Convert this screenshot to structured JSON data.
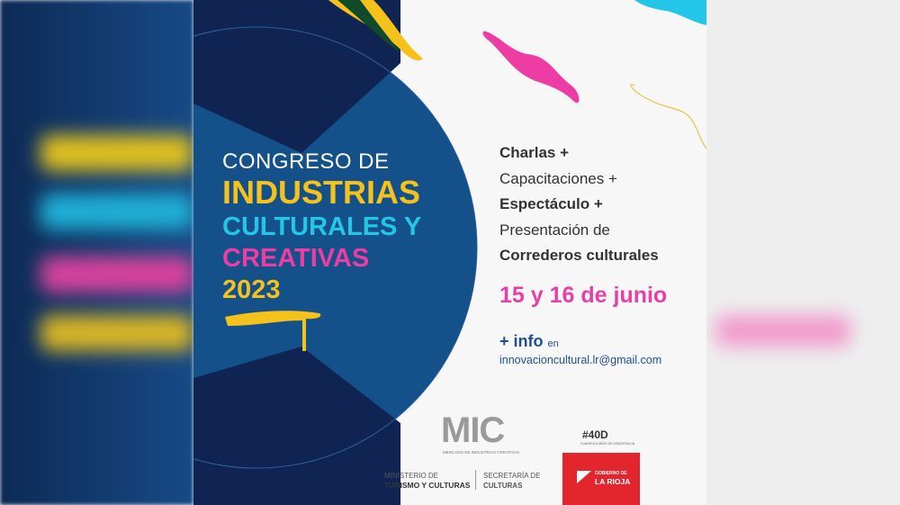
{
  "title": {
    "line1": "CONGRESO DE",
    "line2": "INDUSTRIAS",
    "line3": "CULTURALES Y",
    "line4": "CREATIVAS",
    "line5": "2023"
  },
  "activities": [
    {
      "text": "Charlas +",
      "bold": true
    },
    {
      "text": "Capacitaciones +",
      "bold": false
    },
    {
      "text": "Espectáculo +",
      "bold": true
    },
    {
      "text": "Presentación de",
      "bold": false
    },
    {
      "text": "Correderos culturales",
      "bold": true
    }
  ],
  "date": "15 y 16 de junio",
  "more_info": {
    "label": "+ info",
    "suffix": "en",
    "email": "innovacioncultural.lr@gmail.com"
  },
  "logos": {
    "mic": "MIC",
    "mic_sub": "MERCADO DE INDUSTRIAS CREATIVAS",
    "ministry_line1": "MINISTERIO DE",
    "ministry_line2": "TURISMO Y CULTURAS",
    "secretary_line1": "SECRETARÍA DE",
    "secretary_line2": "CULTURAS",
    "hashtag": "#40D",
    "hashtag_sub": "CUARENTA AÑOS DE DEMOCRACIA",
    "gov_line1": "GOBIERNO DE",
    "gov_line2": "LA RIOJA"
  },
  "colors": {
    "navy": "#0f2452",
    "blue": "#145089",
    "yellow": "#f5c21b",
    "cyan": "#23c6e8",
    "pink": "#ee3ca5",
    "red": "#e3262e"
  }
}
